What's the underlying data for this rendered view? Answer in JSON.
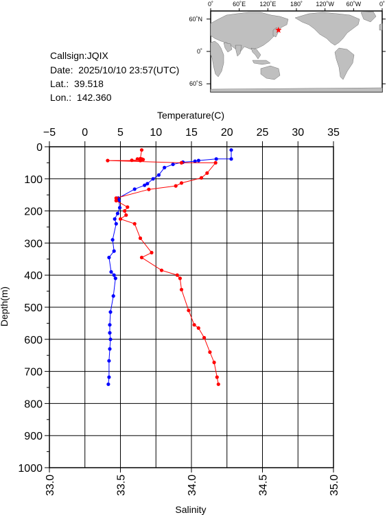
{
  "station": {
    "callsign_label": "Callsign:",
    "callsign": "JQIX",
    "date_label": "Date:",
    "date": "2025/10/10 23:57(UTC)",
    "lat_label": "Lat.:",
    "lat": "39.518",
    "lon_label": "Lon.:",
    "lon": "142.360"
  },
  "map": {
    "top_ticks": [
      "0˚",
      "60˚E",
      "120˚E",
      "180˚",
      "120˚W",
      "60˚W",
      "0˚"
    ],
    "lat_ticks": [
      "60˚N",
      "0˚",
      "60˚S"
    ],
    "ocean_color": "#ffffff",
    "land_color": "#bfbfbf",
    "marker_color": "#ff0000",
    "marker_lat": 39.518,
    "marker_lon": 142.36
  },
  "chart_data": {
    "type": "line",
    "ylabel": "Depth(m)",
    "ylim": [
      0,
      1000
    ],
    "y_inverted": true,
    "y_ticks": [
      "0",
      "100",
      "200",
      "300",
      "400",
      "500",
      "600",
      "700",
      "800",
      "900",
      "1000"
    ],
    "top_axis": {
      "label": "Temperature(C)",
      "lim": [
        -5,
        35
      ],
      "ticks": [
        "−5",
        "0",
        "5",
        "10",
        "15",
        "20",
        "25",
        "30",
        "35"
      ]
    },
    "bottom_axis": {
      "label": "Salinity",
      "lim": [
        33.0,
        35.0
      ],
      "ticks": [
        "33.0",
        "33.5",
        "34.0",
        "34.5",
        "35.0"
      ]
    },
    "grid": true,
    "series": [
      {
        "axis": "top",
        "color": "#0000ff",
        "points": [
          [
            20.6,
            10
          ],
          [
            20.6,
            38
          ],
          [
            18.5,
            38
          ],
          [
            16.0,
            43
          ],
          [
            15.5,
            45
          ],
          [
            13.8,
            48
          ],
          [
            12.4,
            55
          ],
          [
            11.2,
            65
          ],
          [
            10.4,
            88
          ],
          [
            9.6,
            100
          ],
          [
            8.8,
            115
          ],
          [
            8.4,
            120
          ],
          [
            7.0,
            132
          ],
          [
            4.7,
            160
          ],
          [
            4.8,
            168
          ],
          [
            4.9,
            190
          ],
          [
            4.6,
            208
          ],
          [
            4.2,
            225
          ],
          [
            4.4,
            240
          ],
          [
            3.9,
            290
          ],
          [
            4.1,
            325
          ],
          [
            3.4,
            345
          ],
          [
            3.7,
            390
          ],
          [
            4.1,
            400
          ],
          [
            4.3,
            410
          ],
          [
            4.0,
            465
          ],
          [
            3.6,
            515
          ],
          [
            3.5,
            555
          ],
          [
            3.5,
            580
          ],
          [
            3.6,
            600
          ],
          [
            3.5,
            630
          ],
          [
            3.4,
            667
          ],
          [
            3.4,
            718
          ],
          [
            3.3,
            740
          ]
        ]
      },
      {
        "axis": "bottom",
        "color": "#ff0000",
        "points": [
          [
            33.65,
            10
          ],
          [
            33.64,
            37
          ],
          [
            33.62,
            38
          ],
          [
            33.65,
            38
          ],
          [
            33.66,
            40
          ],
          [
            33.58,
            42
          ],
          [
            33.64,
            43
          ],
          [
            33.41,
            43
          ],
          [
            33.93,
            50
          ],
          [
            34.17,
            50
          ],
          [
            34.11,
            82
          ],
          [
            34.07,
            97
          ],
          [
            33.93,
            113
          ],
          [
            33.89,
            122
          ],
          [
            33.7,
            133
          ],
          [
            33.47,
            160
          ],
          [
            33.47,
            168
          ],
          [
            33.55,
            188
          ],
          [
            33.53,
            200
          ],
          [
            33.54,
            213
          ],
          [
            33.5,
            225
          ],
          [
            33.6,
            240
          ],
          [
            33.64,
            285
          ],
          [
            33.72,
            330
          ],
          [
            33.65,
            345
          ],
          [
            33.79,
            385
          ],
          [
            33.9,
            400
          ],
          [
            33.92,
            410
          ],
          [
            33.93,
            445
          ],
          [
            33.98,
            510
          ],
          [
            34.02,
            555
          ],
          [
            34.05,
            565
          ],
          [
            34.09,
            595
          ],
          [
            34.13,
            640
          ],
          [
            34.16,
            672
          ],
          [
            34.18,
            718
          ],
          [
            34.19,
            740
          ]
        ]
      }
    ]
  }
}
